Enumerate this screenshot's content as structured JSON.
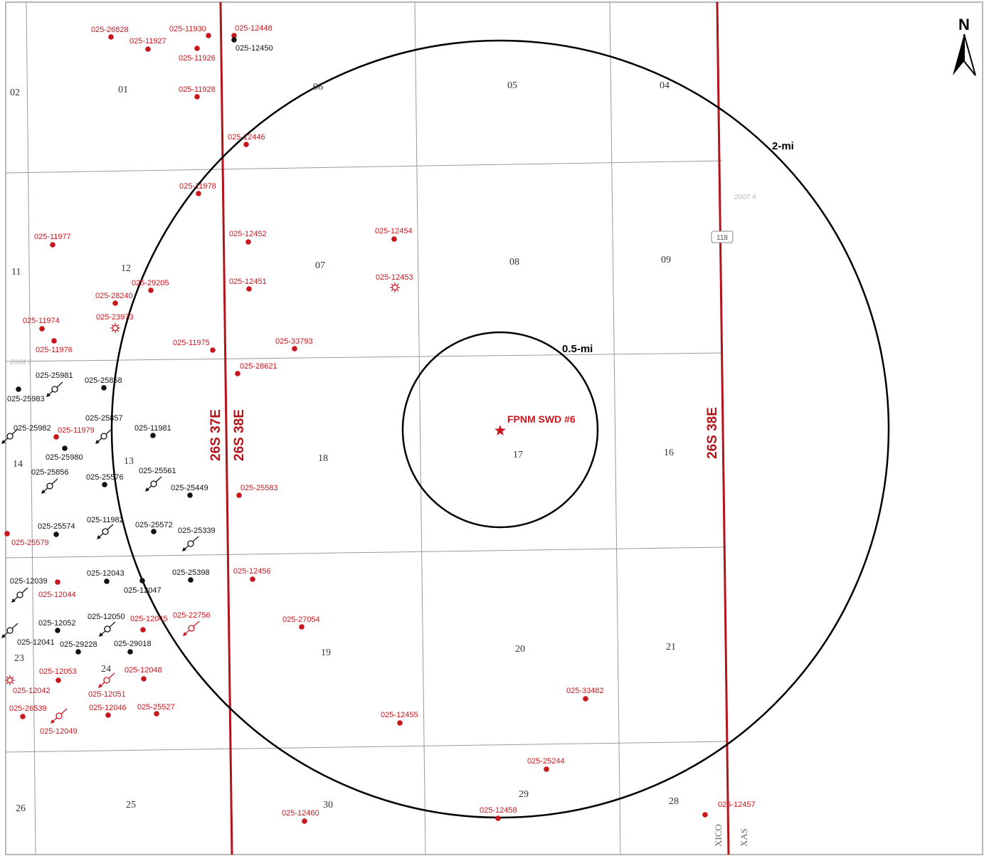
{
  "north_label": "N",
  "buffers": [
    {
      "label": "2-mi",
      "radius_mi": 2
    },
    {
      "label": "0.5-mi",
      "radius_mi": 0.5
    }
  ],
  "site": {
    "label": "FPNM SWD #6",
    "symbol": "star"
  },
  "townships": [
    "26S 37E",
    "26S 38E",
    "26S 38E"
  ],
  "state_labels": [
    "XICO",
    "XAS"
  ],
  "faint_labels": [
    "2007 #",
    "2004 #"
  ],
  "road_label": "118",
  "sections": [
    "02",
    "01",
    "06",
    "05",
    "04",
    "11",
    "12",
    "07",
    "08",
    "09",
    "14",
    "13",
    "18",
    "17",
    "16",
    "23",
    "24",
    "19",
    "20",
    "21",
    "26",
    "25",
    "30",
    "29",
    "28"
  ],
  "wells": [
    {
      "api": "025-26828",
      "color": "red",
      "symbol": "dot"
    },
    {
      "api": "025-11930",
      "color": "red",
      "symbol": "dot"
    },
    {
      "api": "025-12448",
      "color": "red",
      "symbol": "dot"
    },
    {
      "api": "025-12450",
      "color": "black",
      "symbol": "dot"
    },
    {
      "api": "025-11927",
      "color": "red",
      "symbol": "dot"
    },
    {
      "api": "025-11926",
      "color": "red",
      "symbol": "dot"
    },
    {
      "api": "025-11928",
      "color": "red",
      "symbol": "dot"
    },
    {
      "api": "025-12446",
      "color": "red",
      "symbol": "dot"
    },
    {
      "api": "025-11978",
      "color": "red",
      "symbol": "dot"
    },
    {
      "api": "025-11977",
      "color": "red",
      "symbol": "dot"
    },
    {
      "api": "025-12452",
      "color": "red",
      "symbol": "dot"
    },
    {
      "api": "025-12454",
      "color": "red",
      "symbol": "dot"
    },
    {
      "api": "025-12451",
      "color": "red",
      "symbol": "dot"
    },
    {
      "api": "025-12453",
      "color": "red",
      "symbol": "gas"
    },
    {
      "api": "025-29205",
      "color": "red",
      "symbol": "dot"
    },
    {
      "api": "025-28240",
      "color": "red",
      "symbol": "dot"
    },
    {
      "api": "025-23973",
      "color": "red",
      "symbol": "gas"
    },
    {
      "api": "025-11974",
      "color": "red",
      "symbol": "dot"
    },
    {
      "api": "025-11976",
      "color": "red",
      "symbol": "dot"
    },
    {
      "api": "025-11975",
      "color": "red",
      "symbol": "dot"
    },
    {
      "api": "025-33793",
      "color": "red",
      "symbol": "dot"
    },
    {
      "api": "025-28621",
      "color": "red",
      "symbol": "dot"
    },
    {
      "api": "025-25981",
      "color": "black",
      "symbol": "injection"
    },
    {
      "api": "025-25983",
      "color": "black",
      "symbol": "dot"
    },
    {
      "api": "025-25858",
      "color": "black",
      "symbol": "dot"
    },
    {
      "api": "025-25857",
      "color": "black",
      "symbol": "injection"
    },
    {
      "api": "025-25982",
      "color": "black",
      "symbol": "injection"
    },
    {
      "api": "025-11979",
      "color": "red",
      "symbol": "dot"
    },
    {
      "api": "025-11981",
      "color": "black",
      "symbol": "dot"
    },
    {
      "api": "025-25980",
      "color": "black",
      "symbol": "dot"
    },
    {
      "api": "025-25856",
      "color": "black",
      "symbol": "injection"
    },
    {
      "api": "025-25576",
      "color": "black",
      "symbol": "dot"
    },
    {
      "api": "025-25561",
      "color": "black",
      "symbol": "injection"
    },
    {
      "api": "025-25449",
      "color": "black",
      "symbol": "dot"
    },
    {
      "api": "025-25583",
      "color": "red",
      "symbol": "dot"
    },
    {
      "api": "025-25574",
      "color": "black",
      "symbol": "dot"
    },
    {
      "api": "025-11982",
      "color": "black",
      "symbol": "injection"
    },
    {
      "api": "025-25572",
      "color": "black",
      "symbol": "dot"
    },
    {
      "api": "025-25339",
      "color": "black",
      "symbol": "injection"
    },
    {
      "api": "025-25579",
      "color": "red",
      "symbol": "dot"
    },
    {
      "api": "025-12039",
      "color": "black",
      "symbol": "injection"
    },
    {
      "api": "025-12044",
      "color": "red",
      "symbol": "dot"
    },
    {
      "api": "025-12043",
      "color": "black",
      "symbol": "dot"
    },
    {
      "api": "025-12047",
      "color": "black",
      "symbol": "dot"
    },
    {
      "api": "025-25398",
      "color": "black",
      "symbol": "dot"
    },
    {
      "api": "025-12456",
      "color": "red",
      "symbol": "dot"
    },
    {
      "api": "025-12052",
      "color": "black",
      "symbol": "dot"
    },
    {
      "api": "025-12050",
      "color": "black",
      "symbol": "injection"
    },
    {
      "api": "025-12045",
      "color": "red",
      "symbol": "dot"
    },
    {
      "api": "025-22756",
      "color": "red",
      "symbol": "injection"
    },
    {
      "api": "025-27054",
      "color": "red",
      "symbol": "dot"
    },
    {
      "api": "025-12041",
      "color": "black",
      "symbol": "injection"
    },
    {
      "api": "025-29228",
      "color": "black",
      "symbol": "dot"
    },
    {
      "api": "025-29018",
      "color": "black",
      "symbol": "dot"
    },
    {
      "api": "025-12053",
      "color": "red",
      "symbol": "dot"
    },
    {
      "api": "025-12048",
      "color": "red",
      "symbol": "dot"
    },
    {
      "api": "025-12042",
      "color": "red",
      "symbol": "gas"
    },
    {
      "api": "025-12051",
      "color": "red",
      "symbol": "injection"
    },
    {
      "api": "025-26539",
      "color": "red",
      "symbol": "dot"
    },
    {
      "api": "025-12046",
      "color": "red",
      "symbol": "dot"
    },
    {
      "api": "025-25527",
      "color": "red",
      "symbol": "dot"
    },
    {
      "api": "025-12049",
      "color": "red",
      "symbol": "injection"
    },
    {
      "api": "025-33482",
      "color": "red",
      "symbol": "dot"
    },
    {
      "api": "025-12455",
      "color": "red",
      "symbol": "dot"
    },
    {
      "api": "025-25244",
      "color": "red",
      "symbol": "dot"
    },
    {
      "api": "025-12458",
      "color": "red",
      "symbol": "dot"
    },
    {
      "api": "025-12460",
      "color": "red",
      "symbol": "dot"
    },
    {
      "api": "025-12457",
      "color": "red",
      "symbol": "dot"
    }
  ],
  "colors": {
    "red": "#c8161d",
    "black": "#111111",
    "township_line": "#b3141b",
    "grid": "#9a9a9a",
    "township_text": "#b3141b"
  }
}
